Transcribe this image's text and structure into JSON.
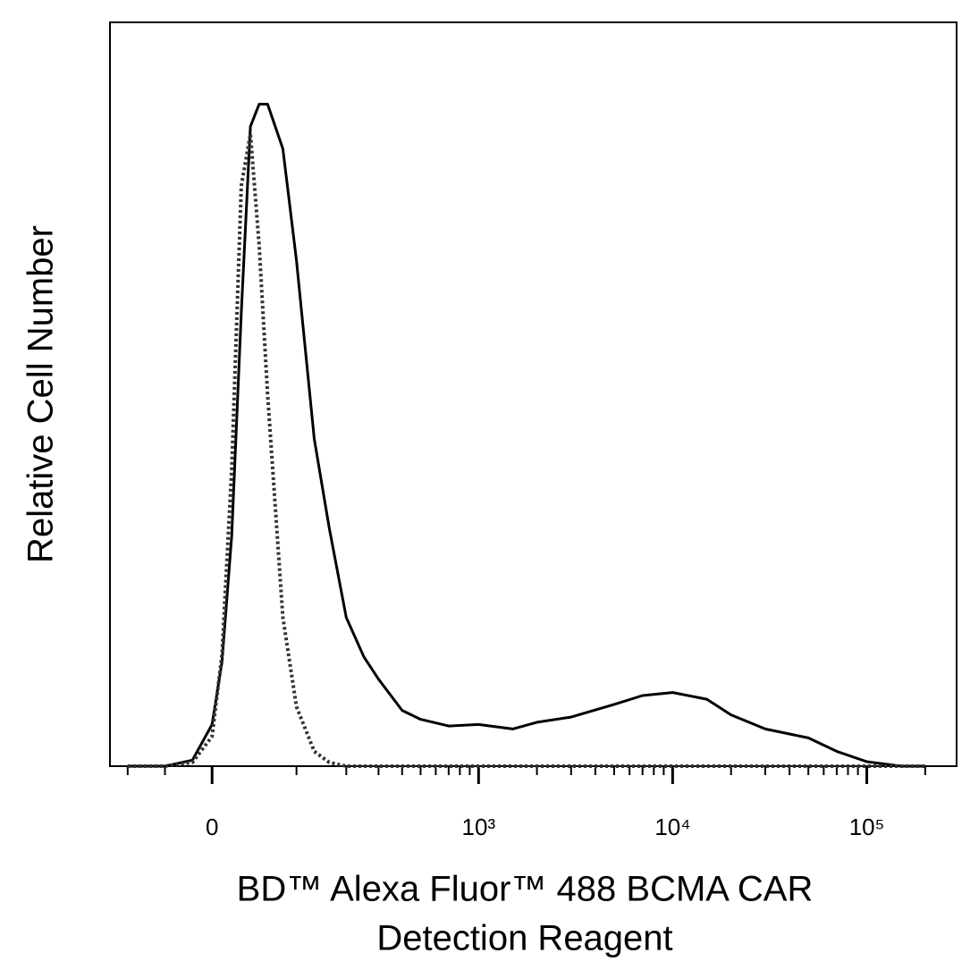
{
  "chart_data": {
    "type": "line",
    "y_label": "Relative Cell Number",
    "x_label": [
      "BD™ Alexa Fluor™ 488 BCMA CAR",
      "Detection Reagent"
    ],
    "xscale": "biexponential",
    "xlim": [
      -130,
      290000
    ],
    "ylim": [
      0,
      100
    ],
    "xticks": [
      0,
      {
        "value": 1000,
        "label": "10³"
      },
      {
        "value": 10000,
        "label": "10⁴"
      },
      {
        "value": 100000,
        "label": "10⁵"
      }
    ],
    "xminorticks": [
      -100,
      -50,
      100,
      200,
      300,
      400,
      500,
      600,
      700,
      800,
      900,
      2000,
      3000,
      4000,
      5000,
      6000,
      7000,
      8000,
      9000,
      20000,
      30000,
      40000,
      50000,
      60000,
      70000,
      80000,
      90000,
      200000
    ],
    "x": [
      -100,
      -50,
      -20,
      0,
      10,
      20,
      30,
      40,
      50,
      60,
      80,
      100,
      130,
      160,
      200,
      250,
      300,
      400,
      500,
      700,
      1000,
      1500,
      2000,
      3000,
      5000,
      7000,
      10000,
      15000,
      20000,
      30000,
      50000,
      70000,
      100000,
      150000,
      200000
    ],
    "series": [
      {
        "color": "#000000",
        "dash": "solid",
        "values": [
          0,
          0,
          0.8,
          5.6,
          14,
          31,
          61,
          86,
          89,
          89,
          83,
          68,
          44,
          32,
          20,
          14.7,
          11.7,
          7.5,
          6.3,
          5.4,
          5.6,
          5.0,
          5.9,
          6.6,
          8.3,
          9.5,
          9.9,
          9.0,
          6.9,
          5.0,
          3.8,
          2.0,
          0.6,
          0,
          0
        ]
      },
      {
        "color": "#333333",
        "dash": "dotted",
        "values": [
          0,
          0,
          0.5,
          4,
          15,
          40,
          78,
          85,
          70,
          50,
          20,
          8,
          2,
          0.5,
          0,
          0,
          0,
          0,
          0,
          0,
          0,
          0,
          0,
          0,
          0,
          0,
          0,
          0,
          0,
          0,
          0,
          0,
          0,
          0,
          0
        ]
      }
    ]
  }
}
